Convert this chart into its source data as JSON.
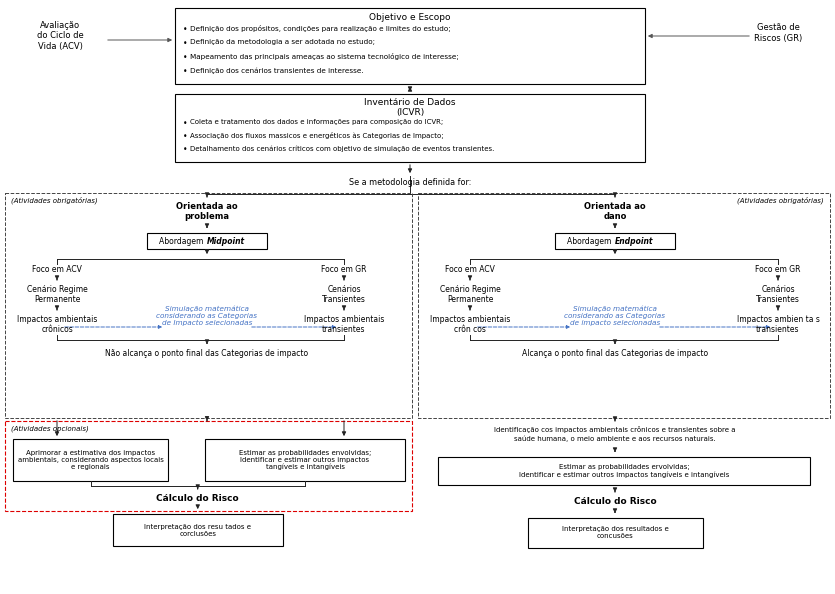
{
  "bg_color": "#ffffff",
  "blue_text": "#4472C4",
  "objetivo_title": "Objetivo e Escopo",
  "objetivo_bullets": [
    "Definição dos propósitos, condições para realização e limites do estudo;",
    "Definição da metodologia a ser adotada no estudo;",
    "Mapeamento das principais ameaças ao sistema tecnológico de interesse;",
    "Definição dos cenários transientes de interesse."
  ],
  "inventario_line1": "Inventário de Dados",
  "inventario_line2": "(ICVR)",
  "inventario_bullets": [
    "Coleta e tratamento dos dados e informações para composição do ICVR;",
    "Associação dos fluxos massicos e energéticos às Categorias de Impacto;",
    "Detalhamento dos cenários críticos com objetivo de simulação de eventos transientes."
  ],
  "acv_label": "Avaliação\ndo Ciclo de\nVida (ACV)",
  "gr_label": "Gestão de\nRiscos (GR)",
  "se_a_metodologia": "Se a metodologia definida for:",
  "left_obrigatorias": "(Atividades obrigatórias)",
  "right_obrigatorias": "(Atividades obrigatórias)",
  "left_title": "Orientada ao\nproblema",
  "right_title": "Orientada ao\ndano",
  "foco_acv": "Foco em ACV",
  "foco_gr": "Foco em GR",
  "cenario_regime": "Cenário Regime\nPermanente",
  "cenarios_transientes": "Cenários\nTransientes",
  "simulacao_text": "Simulação matemática\nconsiderando as Categorias\nde Impacto selecionadas",
  "simulacao_text_r": "Simulação matemática\nconsiderando as Categorias\nde impacto selecionadas",
  "impactos_cronicos": "Impactos ambientais\ncrônicos",
  "impactos_transientes": "Impactos ambientais\ntransientes",
  "impactos_cronicos_r": "Impactos ambientais\ncrôn cos",
  "impactos_transientes_r": "Impactos ambien ta s\ntransientes",
  "nao_alcanca": "Não alcança o ponto final das Categorias de impacto",
  "alcanca": "Alcança o ponto final das Categorias de impacto",
  "identificacao_line1": "Identificação cos impactos ambientais crônicos e transientes sobre a",
  "identificacao_line2": "saúde humana, o meio ambiente e aos recursos naturais.",
  "atividades_opcionais": "(Atividades opcionais)",
  "left_box1": "Aprimorar a estimativa dos impactos\nambientais, considerando aspectos locais\ne regionais",
  "left_box2": "Estimar as probabilidades envolvidas;\nIdentificar e estimar outros impactos\ntangíveis e intangíveis",
  "right_box2_line1": "Estimar as probabilidades ervolvidas;",
  "right_box2_line2": "Identificar e estimar outros impactos tangíveis e intangíveis",
  "calculo_risco": "Cálculo do Risco",
  "interpretacao_left1": "Interpretação dos resu tados e",
  "interpretacao_left2": "corclusões",
  "interpretacao_right1": "Interpretação dos resultados e",
  "interpretacao_right2": "concusões"
}
